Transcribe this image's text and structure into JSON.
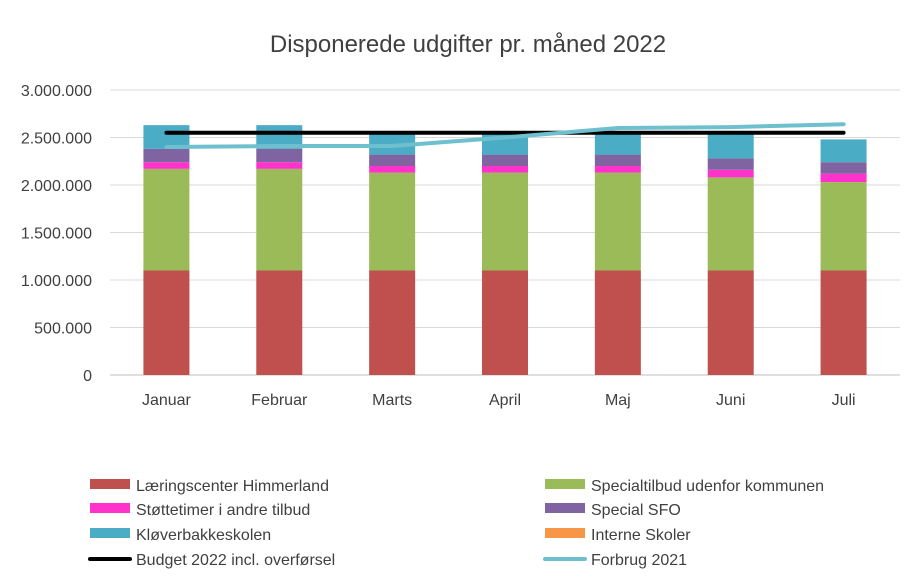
{
  "chart_data": {
    "type": "bar",
    "stacked": true,
    "title": "Disponerede udgifter pr. måned 2022",
    "categories": [
      "Januar",
      "Februar",
      "Marts",
      "April",
      "Maj",
      "Juni",
      "Juli"
    ],
    "y_ticks": [
      "0",
      "500.000",
      "1.000.000",
      "1.500.000",
      "2.000.000",
      "2.500.000",
      "3.000.000"
    ],
    "ylim": [
      0,
      3000000
    ],
    "gridlines": true,
    "legend_position": "bottom",
    "series": [
      {
        "name": "Læringscenter Himmerland",
        "color": "#C0504D",
        "kind": "bar",
        "values": [
          1100000,
          1100000,
          1100000,
          1100000,
          1100000,
          1100000,
          1100000
        ]
      },
      {
        "name": "Specialtilbud udenfor kommunen",
        "color": "#9BBB59",
        "kind": "bar",
        "values": [
          1070000,
          1070000,
          1030000,
          1030000,
          1030000,
          980000,
          930000
        ]
      },
      {
        "name": "Støttetimer i andre tilbud",
        "color": "#FF33CC",
        "kind": "bar",
        "values": [
          70000,
          70000,
          70000,
          70000,
          70000,
          80000,
          90000
        ]
      },
      {
        "name": "Special SFO",
        "color": "#8064A2",
        "kind": "bar",
        "values": [
          140000,
          140000,
          120000,
          120000,
          120000,
          120000,
          120000
        ]
      },
      {
        "name": "Kløverbakkeskolen",
        "color": "#4BACC6",
        "kind": "bar",
        "values": [
          250000,
          250000,
          230000,
          230000,
          230000,
          260000,
          240000
        ]
      },
      {
        "name": "Interne Skoler",
        "color": "#F79646",
        "kind": "bar",
        "values": [
          0,
          0,
          0,
          0,
          0,
          0,
          0
        ]
      },
      {
        "name": "Budget 2022 incl. overførsel",
        "color": "#000000",
        "kind": "line",
        "values": [
          2550000,
          2550000,
          2550000,
          2550000,
          2550000,
          2550000,
          2550000
        ]
      },
      {
        "name": "Forbrug 2021",
        "color": "#6FC0CF",
        "kind": "line",
        "values": [
          2400000,
          2410000,
          2410000,
          2500000,
          2600000,
          2610000,
          2640000
        ]
      }
    ]
  }
}
